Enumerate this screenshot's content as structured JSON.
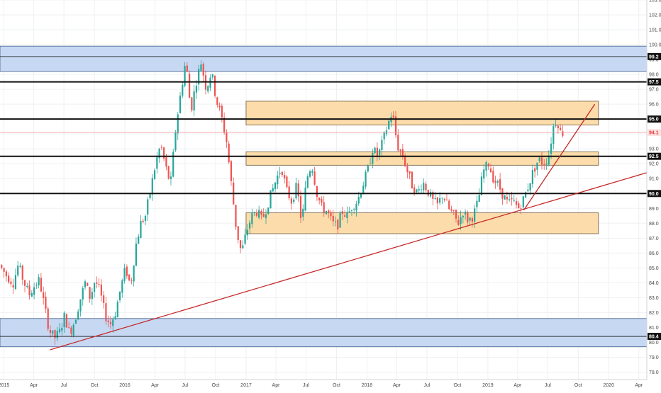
{
  "chart_data": {
    "type": "candlestick",
    "title": "",
    "xlabel": "",
    "ylabel": "",
    "ylim": [
      77.5,
      103.0
    ],
    "xlim": [
      "2014-12-20",
      "2020-04-25"
    ],
    "grid": true,
    "y_ticks": [
      "78.0",
      "79.0",
      "80.0",
      "81.0",
      "82.0",
      "83.0",
      "84.0",
      "85.0",
      "86.0",
      "87.0",
      "88.0",
      "89.0",
      "90.0",
      "91.0",
      "92.0",
      "93.0",
      "94.0",
      "95.0",
      "96.0",
      "97.0",
      "98.0",
      "99.0",
      "100.0",
      "101.0",
      "102.0",
      "103.0"
    ],
    "x_ticks": [
      {
        "label": "2015",
        "date": "2015-01-01"
      },
      {
        "label": "Apr",
        "date": "2015-04-01"
      },
      {
        "label": "Jul",
        "date": "2015-07-01"
      },
      {
        "label": "Oct",
        "date": "2015-10-01"
      },
      {
        "label": "2016",
        "date": "2016-01-01"
      },
      {
        "label": "Apr",
        "date": "2016-04-01"
      },
      {
        "label": "Jul",
        "date": "2016-07-01"
      },
      {
        "label": "Oct",
        "date": "2016-10-01"
      },
      {
        "label": "2017",
        "date": "2017-01-01"
      },
      {
        "label": "Apr",
        "date": "2017-04-01"
      },
      {
        "label": "Jul",
        "date": "2017-07-01"
      },
      {
        "label": "Oct",
        "date": "2017-10-01"
      },
      {
        "label": "2018",
        "date": "2018-01-01"
      },
      {
        "label": "Apr",
        "date": "2018-04-01"
      },
      {
        "label": "Jul",
        "date": "2018-07-01"
      },
      {
        "label": "Oct",
        "date": "2018-10-01"
      },
      {
        "label": "2019",
        "date": "2019-01-01"
      },
      {
        "label": "Apr",
        "date": "2019-04-01"
      },
      {
        "label": "Jul",
        "date": "2019-07-01"
      },
      {
        "label": "Oct",
        "date": "2019-10-01"
      },
      {
        "label": "2020",
        "date": "2020-01-01"
      },
      {
        "label": "Apr",
        "date": "2020-04-01"
      }
    ],
    "zones": [
      {
        "name": "resistance-zone",
        "kind": "blue",
        "from": "2014-12-20",
        "to": "2020-04-25",
        "y_low": 98.2,
        "y_high": 99.9
      },
      {
        "name": "support-zone",
        "kind": "blue",
        "from": "2014-12-20",
        "to": "2020-04-25",
        "y_low": 79.7,
        "y_high": 81.6
      },
      {
        "name": "upper-box",
        "kind": "orange",
        "from": "2017-01-01",
        "to": "2019-12-01",
        "y_low": 94.6,
        "y_high": 96.2
      },
      {
        "name": "middle-box",
        "kind": "orange",
        "from": "2017-01-01",
        "to": "2019-12-01",
        "y_low": 91.9,
        "y_high": 92.8
      },
      {
        "name": "lower-box",
        "kind": "orange",
        "from": "2017-01-01",
        "to": "2019-12-01",
        "y_low": 87.3,
        "y_high": 88.7
      }
    ],
    "levels": [
      {
        "name": "level-99",
        "value": 99.2,
        "label": "99.2",
        "style": "thin"
      },
      {
        "name": "level-97-5",
        "value": 97.5,
        "label": "97.5",
        "style": "thick"
      },
      {
        "name": "level-95",
        "value": 95.0,
        "label": "95.0",
        "style": "thick"
      },
      {
        "name": "level-92-5",
        "value": 92.5,
        "label": "92.5",
        "style": "thick"
      },
      {
        "name": "level-90",
        "value": 90.0,
        "label": "90.0",
        "style": "thick"
      },
      {
        "name": "level-80-4",
        "value": 80.4,
        "label": "80.4",
        "style": "thin"
      }
    ],
    "trendlines": [
      {
        "name": "long-trendline",
        "from": {
          "date": "2015-05-20",
          "value": 79.5
        },
        "to": {
          "date": "2020-04-25",
          "value": 91.4
        }
      },
      {
        "name": "steep-trendline",
        "from": {
          "date": "2019-04-20",
          "value": 88.9
        },
        "to": {
          "date": "2019-11-20",
          "value": 96.0
        }
      }
    ],
    "current_price": {
      "value": 94.1,
      "label": "94.1"
    },
    "price_path": [
      [
        "2014-12-25",
        85.2
      ],
      [
        "2015-01-15",
        84.5
      ],
      [
        "2015-02-05",
        84.0
      ],
      [
        "2015-02-20",
        85.2
      ],
      [
        "2015-03-10",
        84.0
      ],
      [
        "2015-03-25",
        83.2
      ],
      [
        "2015-04-10",
        83.8
      ],
      [
        "2015-04-25",
        84.2
      ],
      [
        "2015-05-05",
        83.0
      ],
      [
        "2015-05-25",
        80.8
      ],
      [
        "2015-06-10",
        80.3
      ],
      [
        "2015-06-25",
        80.7
      ],
      [
        "2015-07-10",
        81.8
      ],
      [
        "2015-07-25",
        80.6
      ],
      [
        "2015-08-10",
        81.5
      ],
      [
        "2015-08-25",
        82.8
      ],
      [
        "2015-09-10",
        84.0
      ],
      [
        "2015-09-25",
        83.0
      ],
      [
        "2015-10-10",
        84.2
      ],
      [
        "2015-10-25",
        83.4
      ],
      [
        "2015-11-10",
        81.8
      ],
      [
        "2015-11-25",
        81.2
      ],
      [
        "2015-12-10",
        82.0
      ],
      [
        "2015-12-25",
        83.5
      ],
      [
        "2016-01-10",
        85.0
      ],
      [
        "2016-01-25",
        83.8
      ],
      [
        "2016-02-10",
        86.5
      ],
      [
        "2016-02-25",
        88.0
      ],
      [
        "2016-03-10",
        88.5
      ],
      [
        "2016-03-25",
        90.2
      ],
      [
        "2016-04-10",
        92.0
      ],
      [
        "2016-04-25",
        93.3
      ],
      [
        "2016-05-10",
        91.8
      ],
      [
        "2016-05-25",
        90.6
      ],
      [
        "2016-06-10",
        94.5
      ],
      [
        "2016-06-25",
        96.8
      ],
      [
        "2016-07-10",
        99.0
      ],
      [
        "2016-07-25",
        95.5
      ],
      [
        "2016-08-10",
        97.5
      ],
      [
        "2016-08-25",
        98.8
      ],
      [
        "2016-09-10",
        97.0
      ],
      [
        "2016-09-25",
        98.2
      ],
      [
        "2016-10-10",
        96.3
      ],
      [
        "2016-10-25",
        95.2
      ],
      [
        "2016-11-10",
        93.5
      ],
      [
        "2016-11-25",
        90.5
      ],
      [
        "2016-12-10",
        87.5
      ],
      [
        "2016-12-25",
        86.0
      ],
      [
        "2017-01-10",
        87.5
      ],
      [
        "2017-01-25",
        88.5
      ],
      [
        "2017-02-10",
        88.8
      ],
      [
        "2017-02-25",
        88.2
      ],
      [
        "2017-03-10",
        89.0
      ],
      [
        "2017-03-25",
        90.0
      ],
      [
        "2017-04-10",
        91.0
      ],
      [
        "2017-04-25",
        91.8
      ],
      [
        "2017-05-10",
        90.2
      ],
      [
        "2017-05-25",
        89.5
      ],
      [
        "2017-06-10",
        90.5
      ],
      [
        "2017-06-25",
        88.0
      ],
      [
        "2017-07-10",
        91.0
      ],
      [
        "2017-07-25",
        92.0
      ],
      [
        "2017-08-10",
        90.0
      ],
      [
        "2017-08-25",
        89.0
      ],
      [
        "2017-09-10",
        88.8
      ],
      [
        "2017-09-25",
        88.0
      ],
      [
        "2017-10-10",
        87.8
      ],
      [
        "2017-10-25",
        88.8
      ],
      [
        "2017-11-10",
        88.5
      ],
      [
        "2017-11-25",
        89.2
      ],
      [
        "2017-12-10",
        89.5
      ],
      [
        "2017-12-25",
        90.5
      ],
      [
        "2018-01-10",
        91.5
      ],
      [
        "2018-01-25",
        93.0
      ],
      [
        "2018-02-10",
        92.5
      ],
      [
        "2018-02-25",
        93.5
      ],
      [
        "2018-03-10",
        94.5
      ],
      [
        "2018-03-25",
        95.5
      ],
      [
        "2018-04-10",
        93.2
      ],
      [
        "2018-04-25",
        92.6
      ],
      [
        "2018-05-10",
        91.5
      ],
      [
        "2018-05-25",
        90.5
      ],
      [
        "2018-06-10",
        90.0
      ],
      [
        "2018-06-25",
        90.8
      ],
      [
        "2018-07-10",
        90.2
      ],
      [
        "2018-07-25",
        89.5
      ],
      [
        "2018-08-10",
        89.2
      ],
      [
        "2018-08-25",
        90.0
      ],
      [
        "2018-09-10",
        89.0
      ],
      [
        "2018-09-25",
        88.6
      ],
      [
        "2018-10-10",
        88.0
      ],
      [
        "2018-10-25",
        88.8
      ],
      [
        "2018-11-10",
        88.2
      ],
      [
        "2018-11-25",
        88.5
      ],
      [
        "2018-12-10",
        89.5
      ],
      [
        "2018-12-25",
        91.5
      ],
      [
        "2019-01-10",
        92.0
      ],
      [
        "2019-01-25",
        91.0
      ],
      [
        "2019-02-10",
        90.5
      ],
      [
        "2019-02-25",
        89.8
      ],
      [
        "2019-03-10",
        89.3
      ],
      [
        "2019-03-25",
        89.5
      ],
      [
        "2019-04-10",
        89.0
      ],
      [
        "2019-04-25",
        89.6
      ],
      [
        "2019-05-10",
        90.5
      ],
      [
        "2019-05-25",
        91.5
      ],
      [
        "2019-06-10",
        92.3
      ],
      [
        "2019-06-25",
        92.0
      ],
      [
        "2019-07-10",
        92.5
      ],
      [
        "2019-07-25",
        94.5
      ],
      [
        "2019-08-05",
        95.0
      ],
      [
        "2019-08-15",
        94.1
      ]
    ],
    "grid_step_days": 17
  }
}
